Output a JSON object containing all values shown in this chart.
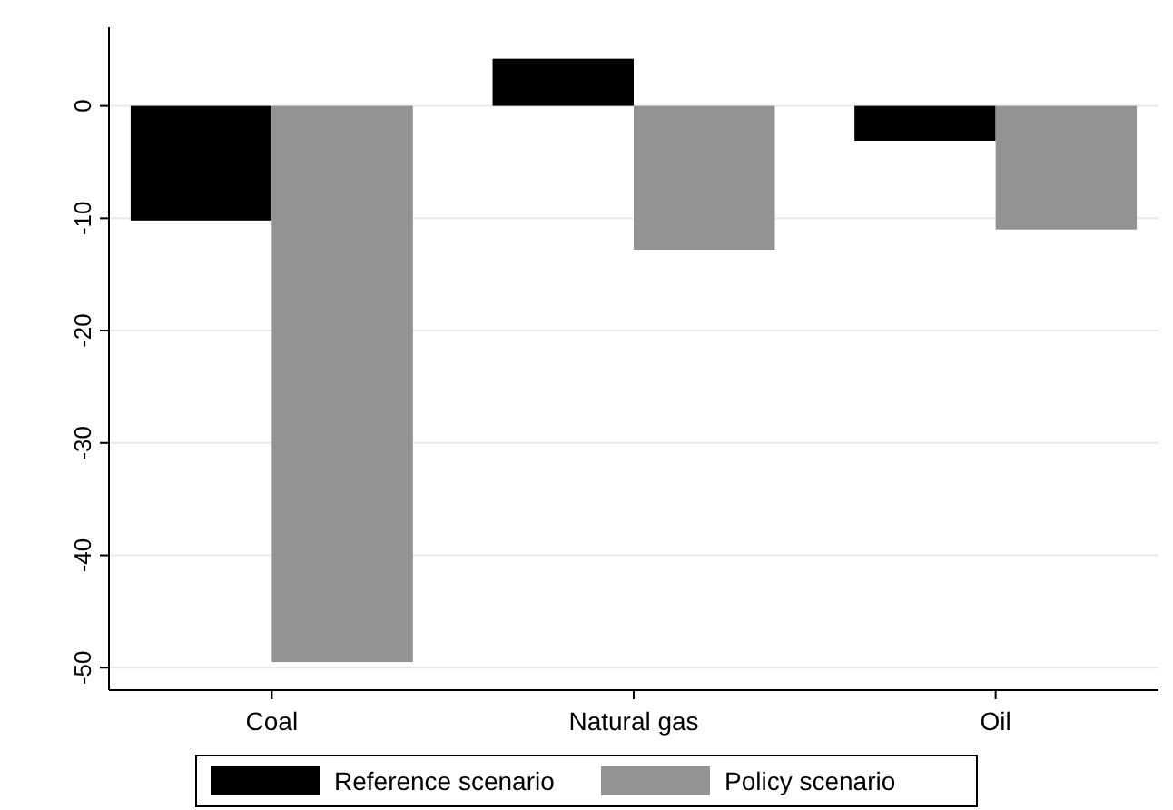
{
  "chart_data": {
    "type": "bar",
    "categories": [
      "Coal",
      "Natural gas",
      "Oil"
    ],
    "series": [
      {
        "name": "Reference scenario",
        "color": "#000000",
        "values": [
          -10.2,
          4.2,
          -3.1
        ]
      },
      {
        "name": "Policy scenario",
        "color": "#939393",
        "values": [
          -49.5,
          -12.8,
          -11
        ]
      }
    ],
    "ylim": [
      -52,
      7
    ],
    "yticks": [
      -50,
      -40,
      -30,
      -20,
      -10,
      0
    ],
    "grid": "y",
    "legend": "bottom"
  }
}
